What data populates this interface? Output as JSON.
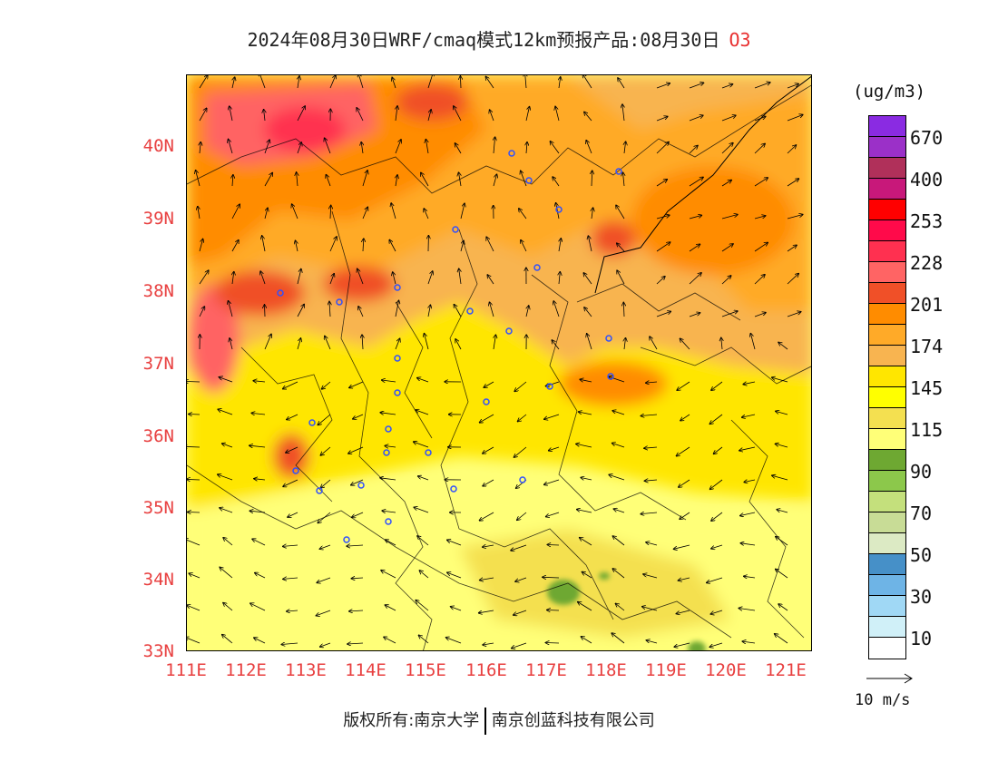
{
  "title": {
    "text": "2024年08月30日WRF/cmaq模式12km预报产品:08月30日",
    "pollutant": "O3"
  },
  "y_labels": [
    "40N",
    "39N",
    "38N",
    "37N",
    "36N",
    "35N",
    "34N",
    "33N"
  ],
  "x_labels": [
    "111E",
    "112E",
    "113E",
    "114E",
    "115E",
    "116E",
    "117E",
    "118E",
    "119E",
    "120E",
    "121E"
  ],
  "unit": "(ug/m3)",
  "legend": {
    "colors": [
      "#8a2be2",
      "#9b30c8",
      "#b0305a",
      "#c8187a",
      "#ff0000",
      "#ff0a4a",
      "#ff3050",
      "#ff6464",
      "#f05028",
      "#ff8c00",
      "#ffaa28",
      "#f8b450",
      "#ffe600",
      "#ffff00",
      "#f4e050",
      "#ffff78",
      "#6ea832",
      "#8cc84b",
      "#c4e07c",
      "#c8dc96",
      "#dceac4",
      "#4690c8",
      "#6eb4e6",
      "#a0d8f5",
      "#d0f0f8",
      "#ffffff"
    ],
    "labels": [
      "670",
      "400",
      "253",
      "228",
      "201",
      "174",
      "145",
      "115",
      "90",
      "70",
      "50",
      "30",
      "10"
    ]
  },
  "wind_scale": {
    "label": "10 m/s"
  },
  "footer": {
    "left": "版权所有:南京大学",
    "right": "南京创蓝科技有限公司"
  }
}
